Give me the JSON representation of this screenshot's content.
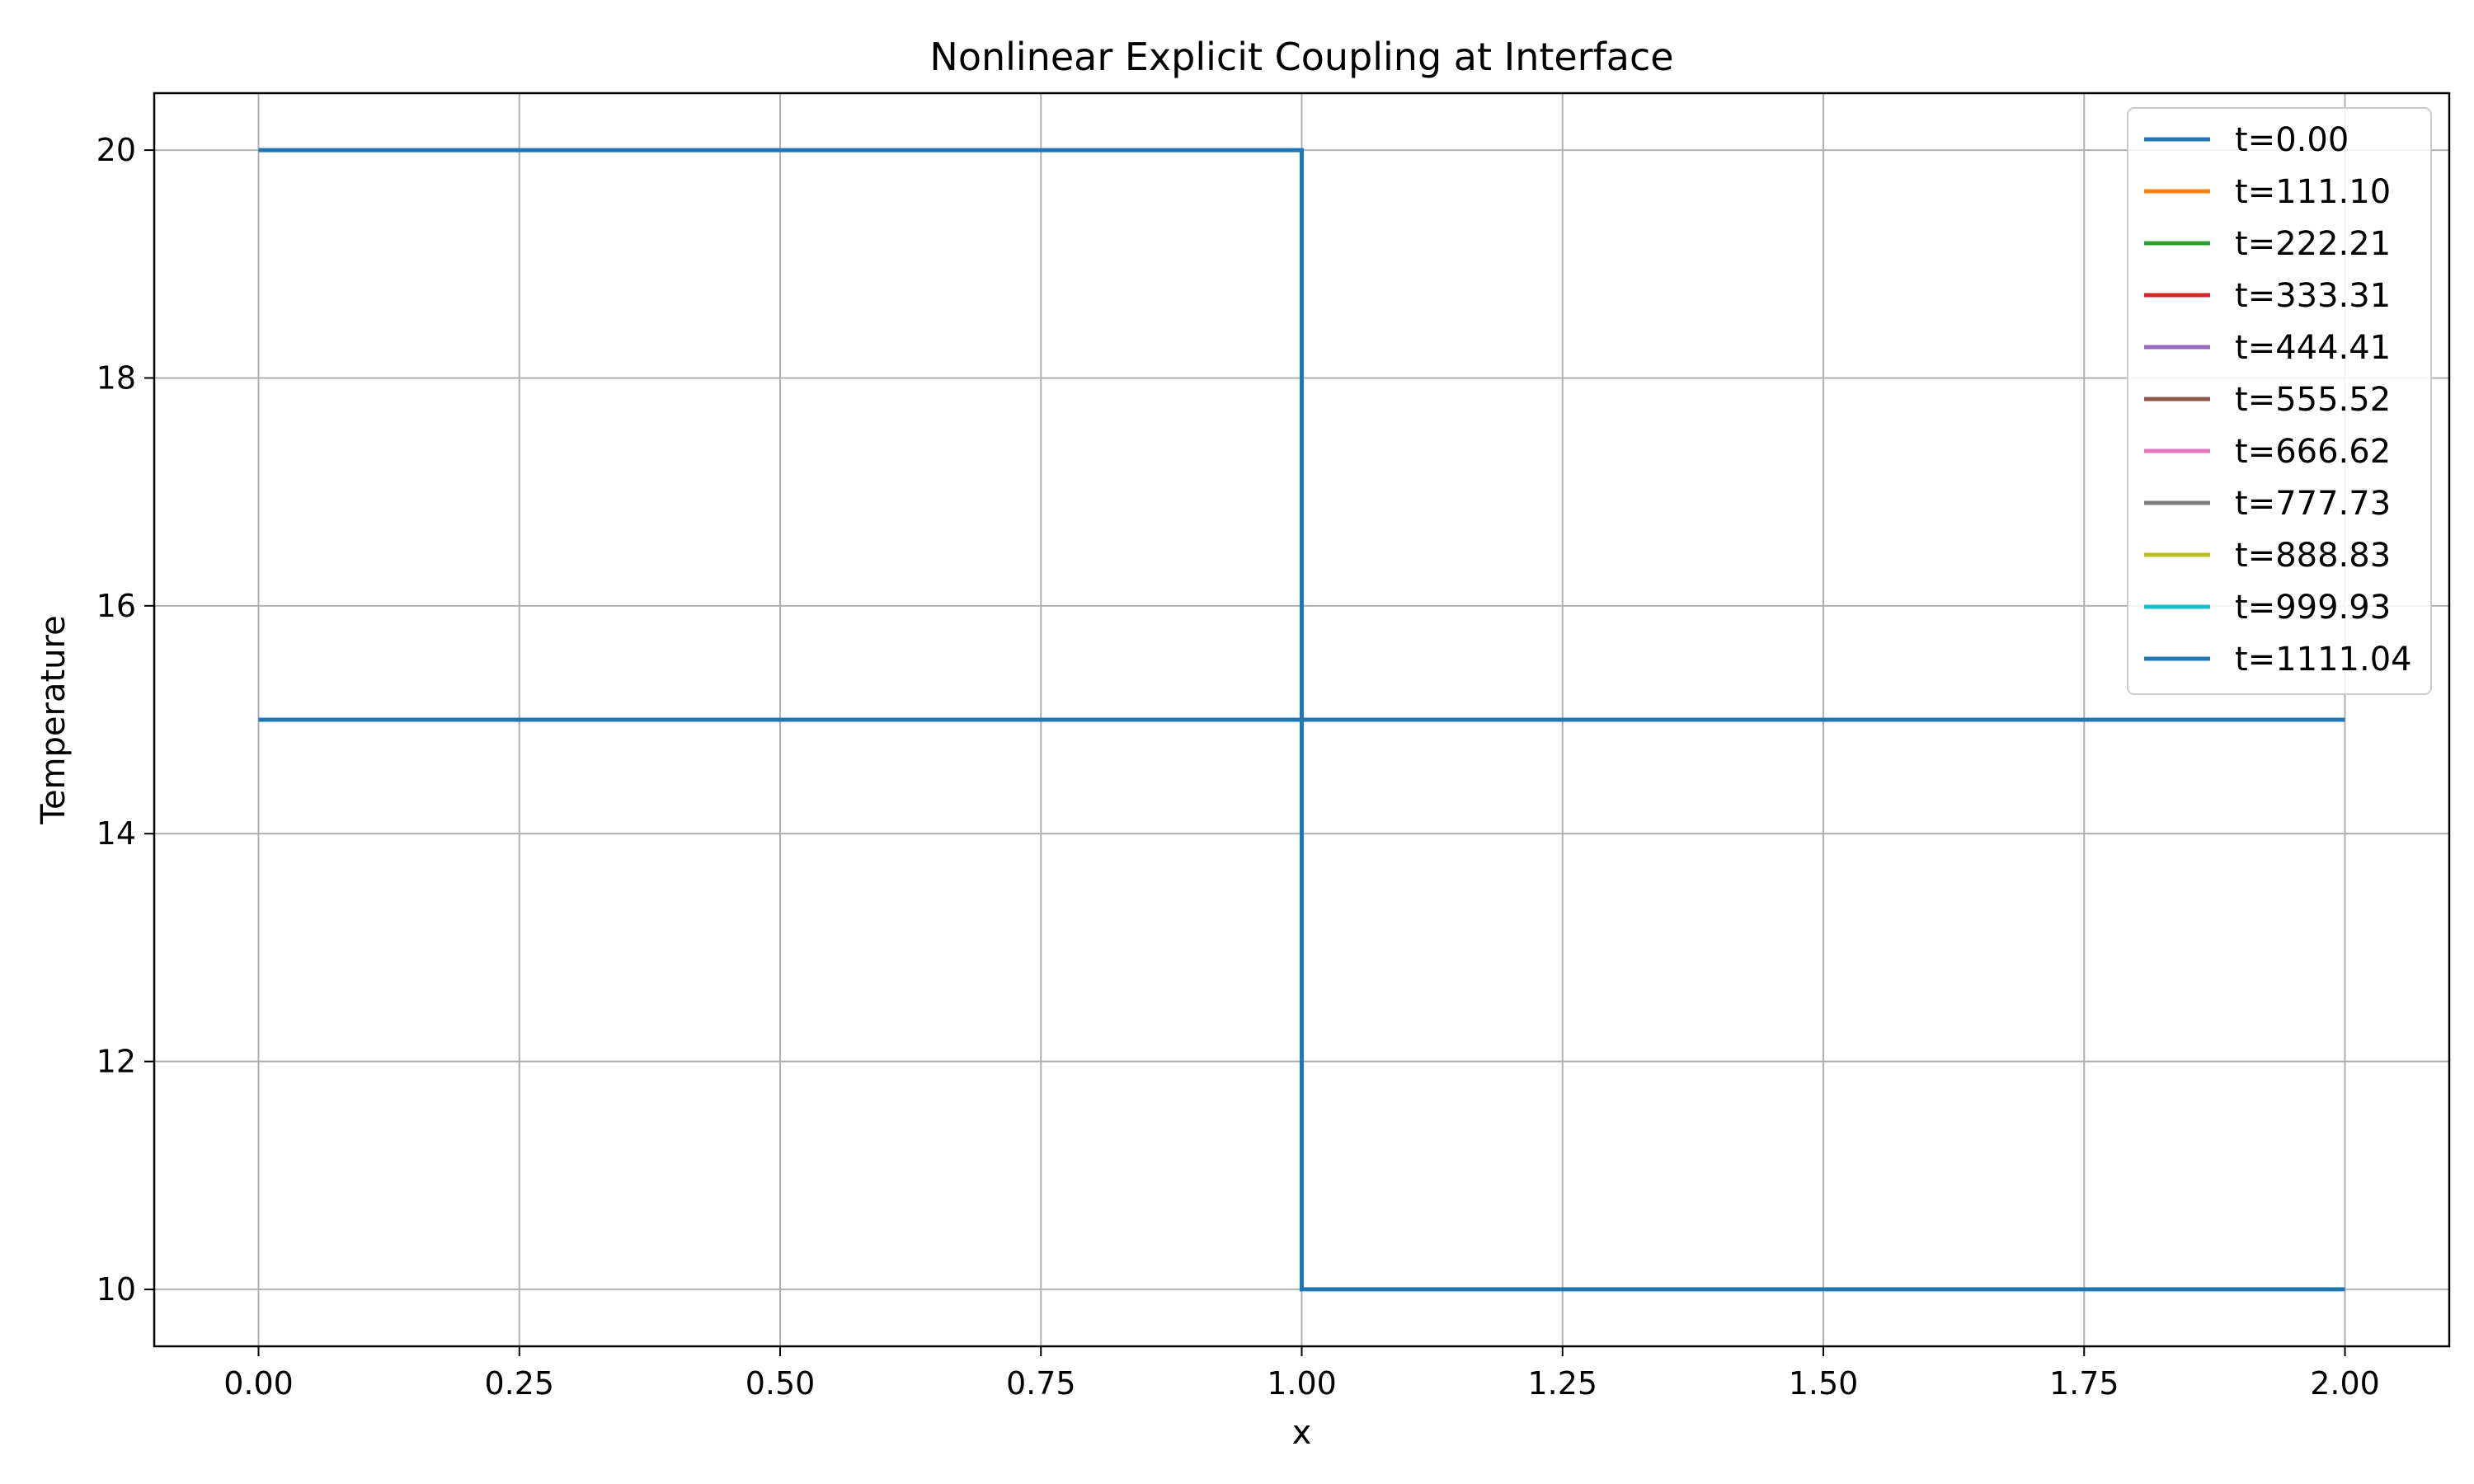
{
  "chart_data": {
    "type": "line",
    "title": "Nonlinear Explicit Coupling at Interface",
    "xlabel": "x",
    "ylabel": "Temperature",
    "xlim": [
      -0.1,
      2.1
    ],
    "ylim": [
      9.5,
      20.5
    ],
    "xticks": [
      "0.00",
      "0.25",
      "0.50",
      "0.75",
      "1.00",
      "1.25",
      "1.50",
      "1.75",
      "2.00"
    ],
    "xtick_values": [
      0,
      0.25,
      0.5,
      0.75,
      1.0,
      1.25,
      1.5,
      1.75,
      2.0
    ],
    "yticks": [
      "10",
      "12",
      "14",
      "16",
      "18",
      "20"
    ],
    "ytick_values": [
      10,
      12,
      14,
      16,
      18,
      20
    ],
    "grid": true,
    "legend_position": "top-right",
    "series": [
      {
        "name": "t=0.00",
        "color": "#1f77b4",
        "x": [
          0.0,
          1.0,
          1.0,
          2.0
        ],
        "y": [
          20,
          20,
          10,
          10
        ]
      },
      {
        "name": "t=111.10",
        "color": "#ff7f0e",
        "x": [
          0.0,
          2.0
        ],
        "y": [
          15,
          15
        ]
      },
      {
        "name": "t=222.21",
        "color": "#2ca02c",
        "x": [
          0.0,
          2.0
        ],
        "y": [
          15,
          15
        ]
      },
      {
        "name": "t=333.31",
        "color": "#d62728",
        "x": [
          0.0,
          2.0
        ],
        "y": [
          15,
          15
        ]
      },
      {
        "name": "t=444.41",
        "color": "#9467bd",
        "x": [
          0.0,
          2.0
        ],
        "y": [
          15,
          15
        ]
      },
      {
        "name": "t=555.52",
        "color": "#8c564b",
        "x": [
          0.0,
          2.0
        ],
        "y": [
          15,
          15
        ]
      },
      {
        "name": "t=666.62",
        "color": "#e377c2",
        "x": [
          0.0,
          2.0
        ],
        "y": [
          15,
          15
        ]
      },
      {
        "name": "t=777.73",
        "color": "#7f7f7f",
        "x": [
          0.0,
          2.0
        ],
        "y": [
          15,
          15
        ]
      },
      {
        "name": "t=888.83",
        "color": "#bcbd22",
        "x": [
          0.0,
          2.0
        ],
        "y": [
          15,
          15
        ]
      },
      {
        "name": "t=999.93",
        "color": "#17becf",
        "x": [
          0.0,
          2.0
        ],
        "y": [
          15,
          15
        ]
      },
      {
        "name": "t=1111.04",
        "color": "#1f77b4",
        "x": [
          0.0,
          2.0
        ],
        "y": [
          15,
          15
        ]
      }
    ]
  }
}
